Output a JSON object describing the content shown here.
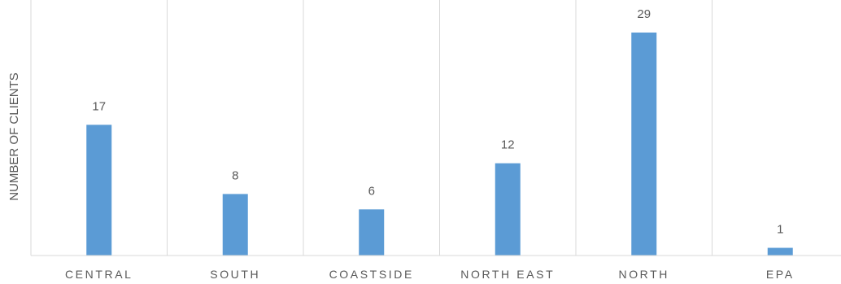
{
  "chart_data": {
    "type": "bar",
    "title": "",
    "xlabel": "",
    "ylabel": "NUMBER OF CLIENTS",
    "categories": [
      "CENTRAL",
      "SOUTH",
      "COASTSIDE",
      "NORTH EAST",
      "NORTH",
      "EPA"
    ],
    "values": [
      17,
      8,
      6,
      12,
      29,
      1
    ],
    "data_labels": [
      "17",
      "8",
      "6",
      "12",
      "29",
      "1"
    ],
    "ylim": [
      0,
      31.5
    ],
    "grid": "vertical separators between categories",
    "legend": "none",
    "colors": {
      "bar": "#5B9BD5",
      "gridline": "#D9D9D9",
      "axis": "#D9D9D9",
      "text": "#595959"
    }
  }
}
